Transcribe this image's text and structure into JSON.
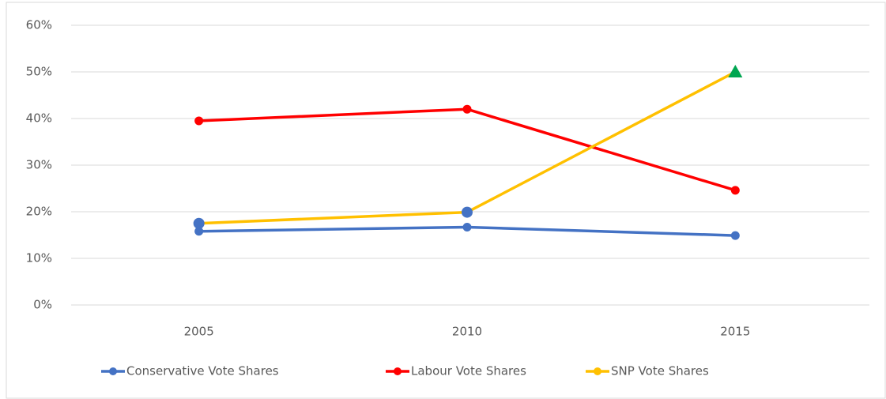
{
  "chart_data": {
    "type": "line",
    "categories": [
      "2005",
      "2010",
      "2015"
    ],
    "series": [
      {
        "name": "Conservative Vote Shares",
        "color": "#4472c4",
        "values": [
          15.8,
          16.7,
          14.9
        ]
      },
      {
        "name": "Labour Vote Shares",
        "color": "#ff0000",
        "values": [
          39.5,
          42.0,
          24.6
        ]
      },
      {
        "name": "SNP Vote Shares",
        "color": "#ffc000",
        "values": [
          17.5,
          19.9,
          50.0
        ],
        "marker_colors": [
          "#4472c4",
          "#4472c4",
          "#00a651"
        ],
        "marker_shapes": [
          "circle",
          "circle",
          "triangle"
        ]
      }
    ],
    "ylim": [
      0,
      60
    ],
    "yticks": [
      {
        "value": 0,
        "label": "0%"
      },
      {
        "value": 10,
        "label": "10%"
      },
      {
        "value": 20,
        "label": "20%"
      },
      {
        "value": 30,
        "label": "30%"
      },
      {
        "value": 40,
        "label": "40%"
      },
      {
        "value": 50,
        "label": "50%"
      },
      {
        "value": 60,
        "label": "60%"
      }
    ],
    "grid": true,
    "legend": "bottom"
  }
}
